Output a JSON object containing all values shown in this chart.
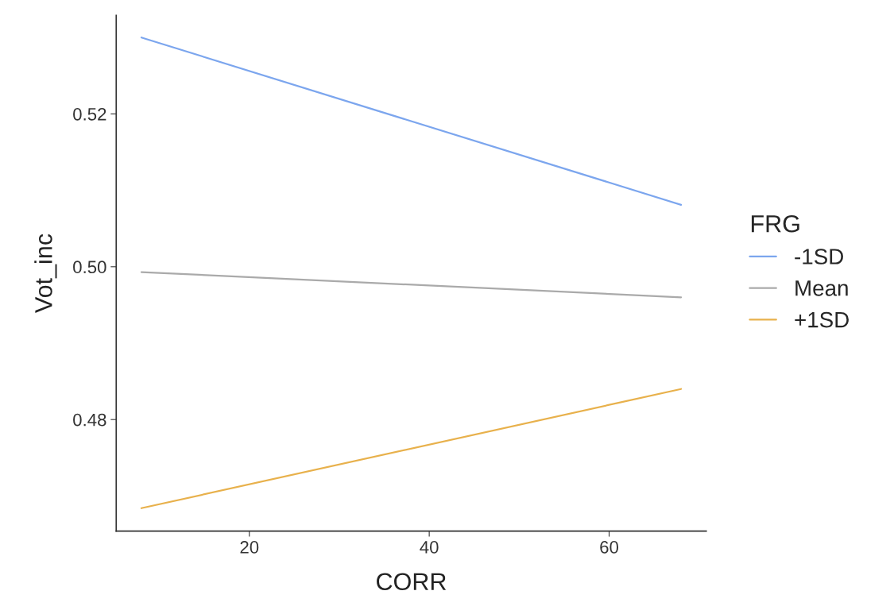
{
  "chart_data": {
    "type": "line",
    "xlabel": "CORR",
    "ylabel": "Vot_inc",
    "legend_title": "FRG",
    "x": [
      8,
      68
    ],
    "series": [
      {
        "name": "-1SD",
        "color": "#7ca6ee",
        "values": [
          0.53,
          0.5081
        ]
      },
      {
        "name": "Mean",
        "color": "#aaaaaa",
        "values": [
          0.4993,
          0.496
        ]
      },
      {
        "name": "+1SD",
        "color": "#e8b14c",
        "values": [
          0.4684,
          0.484
        ]
      }
    ],
    "xlim": [
      5.2,
      70.8
    ],
    "ylim": [
      0.4654,
      0.5329
    ],
    "xticks": [
      20,
      40,
      60
    ],
    "yticks": [
      {
        "value": 0.48,
        "label": "0.48"
      },
      {
        "value": 0.5,
        "label": "0.50"
      },
      {
        "value": 0.52,
        "label": "0.52"
      }
    ],
    "grid": false,
    "legend": "right",
    "line_style": "solid",
    "marker": "none"
  }
}
